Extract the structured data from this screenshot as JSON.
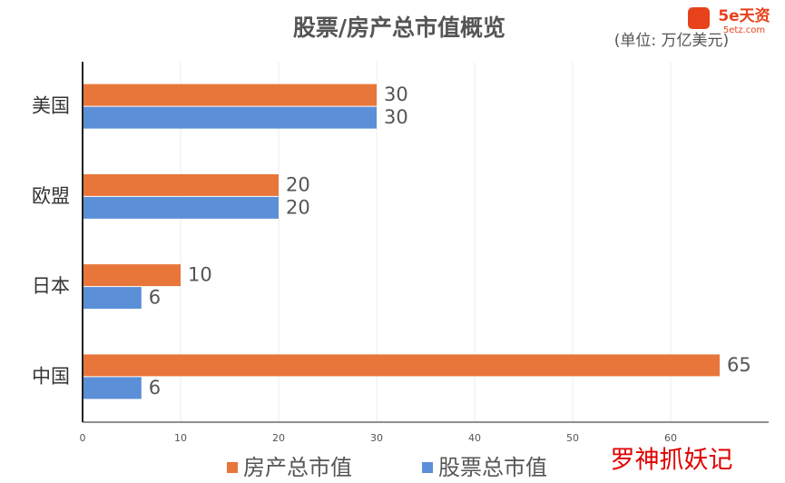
{
  "chart_data": {
    "type": "hbar",
    "title": "股票/房产总市值概览",
    "subtitle": "(单位: 万亿美元)",
    "categories": [
      "美国",
      "欧盟",
      "日本",
      "中国"
    ],
    "series": [
      {
        "name": "房产总市值",
        "color": "#e8763a",
        "values": [
          30,
          20,
          10,
          65
        ]
      },
      {
        "name": "股票总市值",
        "color": "#5b8fd8",
        "values": [
          30,
          20,
          6,
          6
        ]
      }
    ],
    "xlim": [
      0,
      70
    ],
    "xticks": [
      0,
      10,
      20,
      30,
      40,
      50,
      60
    ],
    "grid": true,
    "watermarks": [
      "5e天资",
      "5etz.com",
      "罗神抓妖记"
    ]
  }
}
